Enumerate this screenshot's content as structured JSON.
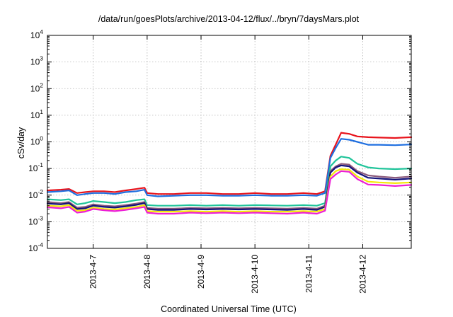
{
  "chart_data": {
    "type": "line",
    "title": "/data/run/goesPlots/archive/2013-04-12/flux/../bryn/7daysMars.plot",
    "xlabel": "Coordinated Universal Time (UTC)",
    "ylabel": "cSv/day",
    "yscale": "log",
    "ylim": [
      0.0001,
      10000
    ],
    "xlim": [
      -0.85,
      5.9
    ],
    "y_ticks": [
      {
        "base": "10",
        "exp": "-4",
        "value": 0.0001
      },
      {
        "base": "10",
        "exp": "-3",
        "value": 0.001
      },
      {
        "base": "10",
        "exp": "-2",
        "value": 0.01
      },
      {
        "base": "10",
        "exp": "-1",
        "value": 0.1
      },
      {
        "base": "10",
        "exp": "0",
        "value": 1
      },
      {
        "base": "10",
        "exp": "1",
        "value": 10
      },
      {
        "base": "10",
        "exp": "2",
        "value": 100
      },
      {
        "base": "10",
        "exp": "3",
        "value": 1000
      },
      {
        "base": "10",
        "exp": "4",
        "value": 10000
      }
    ],
    "x_ticks": [
      {
        "label": "2013-4-7",
        "value": 0
      },
      {
        "label": "2013-4-8",
        "value": 1
      },
      {
        "label": "2013-4-9",
        "value": 2
      },
      {
        "label": "2013-4-10",
        "value": 3
      },
      {
        "label": "2013-4-11",
        "value": 4
      },
      {
        "label": "2013-4-12",
        "value": 5
      }
    ],
    "grid": true,
    "x": [
      -0.85,
      -0.6,
      -0.45,
      -0.3,
      -0.15,
      0.0,
      0.2,
      0.4,
      0.6,
      0.8,
      0.95,
      1.0,
      1.2,
      1.5,
      1.8,
      2.1,
      2.4,
      2.7,
      3.0,
      3.3,
      3.6,
      3.9,
      4.15,
      4.3,
      4.4,
      4.5,
      4.6,
      4.75,
      4.9,
      5.1,
      5.3,
      5.6,
      5.9
    ],
    "series": [
      {
        "color": "#e8141c",
        "values": [
          0.015,
          0.016,
          0.017,
          0.012,
          0.013,
          0.014,
          0.014,
          0.013,
          0.015,
          0.017,
          0.019,
          0.012,
          0.011,
          0.011,
          0.012,
          0.012,
          0.011,
          0.011,
          0.012,
          0.011,
          0.011,
          0.012,
          0.011,
          0.014,
          0.3,
          0.8,
          2.2,
          2.0,
          1.6,
          1.5,
          1.45,
          1.4,
          1.5
        ]
      },
      {
        "color": "#1f6fe0",
        "values": [
          0.013,
          0.014,
          0.015,
          0.01,
          0.011,
          0.012,
          0.012,
          0.011,
          0.013,
          0.014,
          0.016,
          0.01,
          0.009,
          0.0095,
          0.01,
          0.01,
          0.0095,
          0.0095,
          0.01,
          0.0095,
          0.0095,
          0.01,
          0.0095,
          0.012,
          0.25,
          0.6,
          1.3,
          1.2,
          1.0,
          0.78,
          0.78,
          0.75,
          0.8
        ]
      },
      {
        "color": "#20c49a",
        "values": [
          0.007,
          0.0065,
          0.007,
          0.0045,
          0.005,
          0.006,
          0.0055,
          0.005,
          0.0055,
          0.0065,
          0.007,
          0.0042,
          0.004,
          0.004,
          0.0042,
          0.004,
          0.0042,
          0.004,
          0.0042,
          0.0041,
          0.004,
          0.0042,
          0.004,
          0.005,
          0.12,
          0.2,
          0.28,
          0.25,
          0.15,
          0.11,
          0.1,
          0.095,
          0.1
        ]
      },
      {
        "color": "#8b5a7c",
        "values": [
          0.0055,
          0.005,
          0.0055,
          0.0034,
          0.0036,
          0.0045,
          0.004,
          0.0038,
          0.0042,
          0.0048,
          0.0055,
          0.0033,
          0.0031,
          0.0031,
          0.0033,
          0.0032,
          0.0033,
          0.0032,
          0.0033,
          0.0032,
          0.0031,
          0.0033,
          0.0031,
          0.004,
          0.08,
          0.12,
          0.15,
          0.14,
          0.08,
          0.055,
          0.05,
          0.045,
          0.05
        ]
      },
      {
        "color": "#12127a",
        "values": [
          0.0048,
          0.0045,
          0.005,
          0.003,
          0.0032,
          0.004,
          0.0036,
          0.0034,
          0.0038,
          0.0043,
          0.005,
          0.003,
          0.0028,
          0.0028,
          0.003,
          0.0029,
          0.003,
          0.0029,
          0.003,
          0.0029,
          0.0028,
          0.003,
          0.0028,
          0.0036,
          0.07,
          0.11,
          0.13,
          0.12,
          0.07,
          0.045,
          0.042,
          0.038,
          0.042
        ]
      },
      {
        "color": "#f4e80a",
        "values": [
          0.004,
          0.0038,
          0.0042,
          0.0026,
          0.0027,
          0.0034,
          0.003,
          0.0029,
          0.0032,
          0.0036,
          0.0042,
          0.0025,
          0.0024,
          0.0024,
          0.0025,
          0.0024,
          0.0025,
          0.0024,
          0.0025,
          0.0024,
          0.0024,
          0.0025,
          0.0024,
          0.003,
          0.05,
          0.08,
          0.095,
          0.09,
          0.05,
          0.032,
          0.03,
          0.028,
          0.03
        ]
      },
      {
        "color": "#ec1ed6",
        "values": [
          0.0035,
          0.0032,
          0.0036,
          0.0022,
          0.0024,
          0.003,
          0.0027,
          0.0025,
          0.0028,
          0.0032,
          0.0036,
          0.0022,
          0.002,
          0.002,
          0.0022,
          0.0021,
          0.0022,
          0.0021,
          0.0022,
          0.0021,
          0.002,
          0.0022,
          0.002,
          0.0026,
          0.04,
          0.06,
          0.08,
          0.075,
          0.04,
          0.025,
          0.024,
          0.022,
          0.024
        ]
      }
    ]
  }
}
